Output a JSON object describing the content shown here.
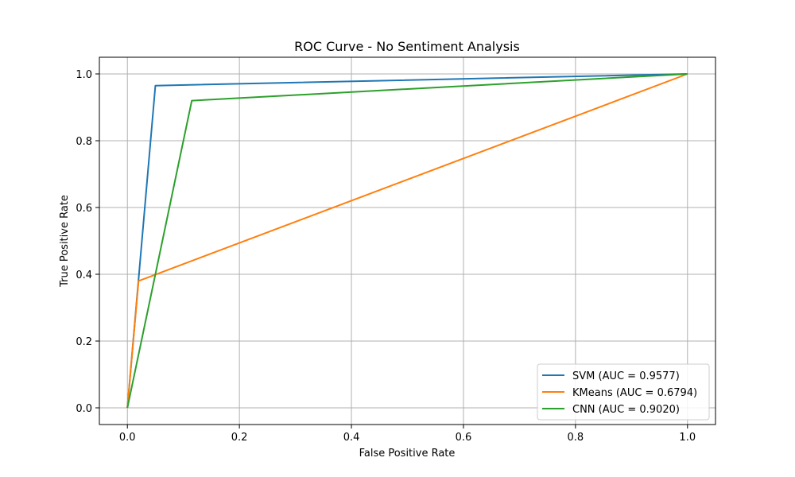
{
  "chart_data": {
    "type": "line",
    "title": "ROC Curve - No Sentiment Analysis",
    "xlabel": "False Positive Rate",
    "ylabel": "True Positive Rate",
    "xlim": [
      -0.05,
      1.05
    ],
    "ylim": [
      -0.05,
      1.05
    ],
    "xticks": [
      0.0,
      0.2,
      0.4,
      0.6,
      0.8,
      1.0
    ],
    "yticks": [
      0.0,
      0.2,
      0.4,
      0.6,
      0.8,
      1.0
    ],
    "xtick_labels": [
      "0.0",
      "0.2",
      "0.4",
      "0.6",
      "0.8",
      "1.0"
    ],
    "ytick_labels": [
      "0.0",
      "0.2",
      "0.4",
      "0.6",
      "0.8",
      "1.0"
    ],
    "grid": true,
    "legend_position": "lower-right",
    "series": [
      {
        "name": "SVM (AUC = 0.9577)",
        "color": "#1f77b4",
        "x": [
          0.0,
          0.05,
          1.0
        ],
        "y": [
          0.0,
          0.965,
          1.0
        ]
      },
      {
        "name": "KMeans (AUC = 0.6794)",
        "color": "#ff7f0e",
        "x": [
          0.0,
          0.02,
          1.0
        ],
        "y": [
          0.0,
          0.38,
          1.0
        ]
      },
      {
        "name": "CNN (AUC = 0.9020)",
        "color": "#2ca02c",
        "x": [
          0.0,
          0.115,
          1.0
        ],
        "y": [
          0.0,
          0.92,
          1.0
        ]
      }
    ]
  }
}
